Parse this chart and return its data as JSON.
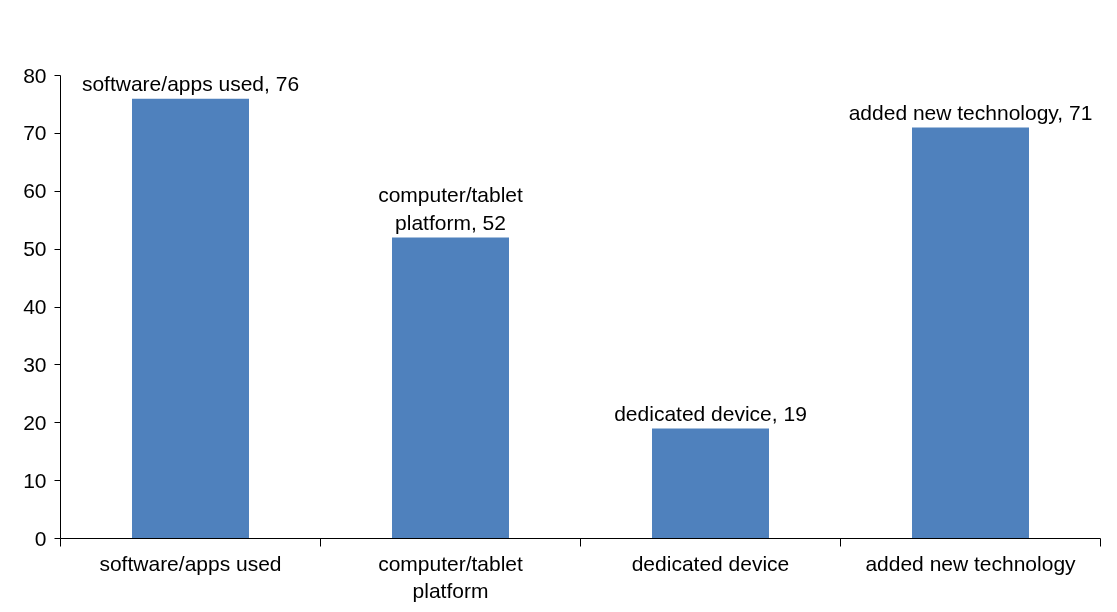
{
  "chart_data": {
    "type": "bar",
    "categories": [
      "software/apps used",
      "computer/tablet platform",
      "dedicated device",
      "added new technology"
    ],
    "values": [
      76,
      52,
      19,
      71
    ],
    "color": "#4f81bd",
    "value_labels": [
      "software/apps used, 76",
      "computer/tablet platform, 52",
      "dedicated device, 19",
      "added new technology, 71"
    ],
    "ylim": [
      0,
      80
    ],
    "yticks": [
      0,
      10,
      20,
      30,
      40,
      50,
      60,
      70,
      80
    ],
    "grid": false
  }
}
